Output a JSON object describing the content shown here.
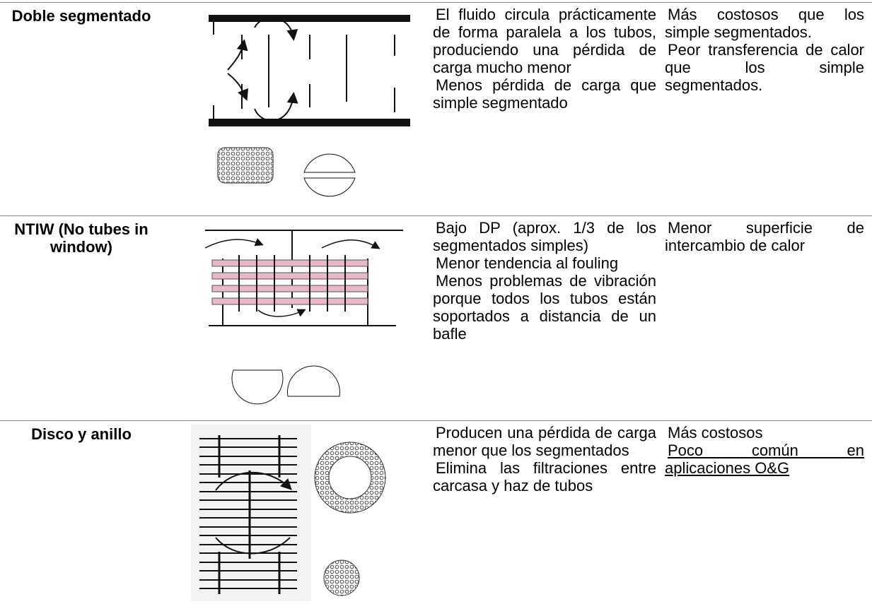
{
  "table": {
    "rows": [
      {
        "name": "Doble segmentado",
        "advantages": [
          "El fluido circula prácticamente de forma paralela a los tubos, produciendo una pérdida de carga mucho menor",
          "Menos pérdida de carga que simple segmentado"
        ],
        "disadvantages": [
          "Más costosos que los simple segmentados.",
          "Peor transferencia de calor que los simple segmentados."
        ]
      },
      {
        "name": "NTIW (No tubes in window)",
        "advantages": [
          "Bajo DP (aprox. 1/3 de los segmentados simples)",
          "Menor tendencia al fouling",
          "Menos problemas de vibración porque todos los tubos están soportados a distancia de un bafle"
        ],
        "disadvantages": [
          "Menor superficie de intercambio de calor"
        ]
      },
      {
        "name": "Disco y anillo",
        "advantages": [
          "Producen una pérdida de carga menor que los segmentados",
          "Elimina las filtraciones entre carcasa y haz de tubos"
        ],
        "disadvantages": [
          "Más costosos",
          "Poco común en aplicaciones O&G"
        ]
      }
    ]
  }
}
